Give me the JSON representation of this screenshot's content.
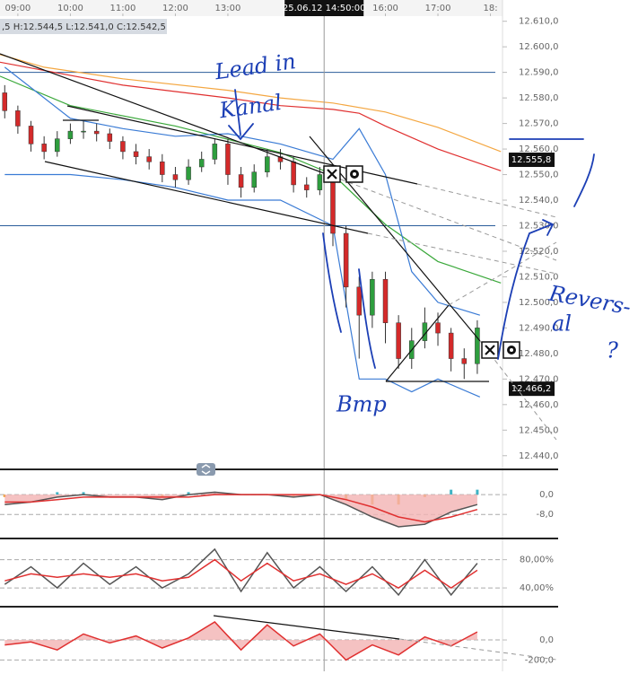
{
  "chart_data": [
    {
      "type": "candlestick",
      "info": ",5  H:12.544,5  L:12.541,0  C:12.542,5",
      "crosshair": {
        "value": 14.833,
        "label": "25.06.12 14:50:00"
      },
      "xlim": [
        8.66,
        18.23
      ],
      "xticks": [
        {
          "value": 9,
          "label": "09:00"
        },
        {
          "value": 10,
          "label": "10:00"
        },
        {
          "value": 11,
          "label": "11:00"
        },
        {
          "value": 12,
          "label": "12:00"
        },
        {
          "value": 13,
          "label": "13:00"
        },
        {
          "value": 16,
          "label": "16:00"
        },
        {
          "value": 17,
          "label": "17:00"
        },
        {
          "value": 18,
          "label": "18:"
        }
      ],
      "ylim": [
        12435,
        12612
      ],
      "yticks": [
        {
          "value": 12440,
          "label": "12.440,0"
        },
        {
          "value": 12450,
          "label": "12.450,0"
        },
        {
          "value": 12460,
          "label": "12.460,0"
        },
        {
          "value": 12470,
          "label": "12.470,0"
        },
        {
          "value": 12480,
          "label": "12.480,0"
        },
        {
          "value": 12490,
          "label": "12.490,0"
        },
        {
          "value": 12500,
          "label": "12.500,0"
        },
        {
          "value": 12510,
          "label": "12.510,0"
        },
        {
          "value": 12520,
          "label": "12.520,0"
        },
        {
          "value": 12530,
          "label": "12.530,0"
        },
        {
          "value": 12540,
          "label": "12.540,0"
        },
        {
          "value": 12550,
          "label": "12.550,0"
        },
        {
          "value": 12560,
          "label": "12.560,0"
        },
        {
          "value": 12570,
          "label": "12.570,0"
        },
        {
          "value": 12580,
          "label": "12.580,0"
        },
        {
          "value": 12590,
          "label": "12.590,0"
        },
        {
          "value": 12600,
          "label": "12.600,0"
        },
        {
          "value": 12610,
          "label": "12.610,0"
        }
      ],
      "grid": false,
      "up_color": "#2e9e3e",
      "down_color": "#d42a2a",
      "x": [
        8.75,
        9,
        9.25,
        9.5,
        9.75,
        10,
        10.25,
        10.5,
        10.75,
        11,
        11.25,
        11.5,
        11.75,
        12,
        12.25,
        12.5,
        12.75,
        13,
        13.25,
        13.5,
        13.75,
        14,
        14.25,
        14.5,
        14.75,
        15,
        15.25,
        15.5,
        15.75,
        16,
        16.25,
        16.5,
        16.75,
        17,
        17.25,
        17.5,
        17.75
      ],
      "open": [
        12582,
        12575,
        12569,
        12562,
        12559,
        12564,
        12567,
        12567,
        12566,
        12563,
        12559,
        12557,
        12555,
        12550,
        12548,
        12553,
        12556,
        12562,
        12550,
        12545,
        12551,
        12557,
        12555,
        12546,
        12544,
        12550,
        12527,
        12506,
        12495,
        12509,
        12492,
        12478,
        12485,
        12492,
        12488,
        12478,
        12476
      ],
      "high": [
        12585,
        12577,
        12571,
        12565,
        12567,
        12570,
        12571,
        12570,
        12568,
        12565,
        12562,
        12560,
        12558,
        12553,
        12556,
        12559,
        12564,
        12564,
        12553,
        12554,
        12560,
        12560,
        12557,
        12549,
        12553,
        12552,
        12530,
        12510,
        12512,
        12512,
        12495,
        12490,
        12498,
        12496,
        12490,
        12482,
        12493
      ],
      "low": [
        12572,
        12566,
        12559,
        12556,
        12557,
        12562,
        12564,
        12563,
        12560,
        12556,
        12554,
        12552,
        12547,
        12545,
        12546,
        12551,
        12554,
        12546,
        12541,
        12543,
        12549,
        12552,
        12543,
        12541,
        12542,
        12522,
        12498,
        12478,
        12490,
        12484,
        12474,
        12474,
        12482,
        12483,
        12473,
        12470,
        12472
      ],
      "close": [
        12575,
        12569,
        12562,
        12559,
        12564,
        12567,
        12567,
        12566,
        12563,
        12559,
        12557,
        12555,
        12550,
        12548,
        12553,
        12556,
        12562,
        12550,
        12545,
        12551,
        12557,
        12555,
        12546,
        12544,
        12550,
        12527,
        12506,
        12495,
        12509,
        12492,
        12478,
        12485,
        12492,
        12488,
        12478,
        12476,
        12490
      ],
      "lines": [
        {
          "color": "#f4a742",
          "x": [
            8.66,
            9.5,
            11,
            13,
            14,
            15,
            16,
            17,
            18.2
          ],
          "values": [
            12597,
            12592,
            12587.5,
            12583,
            12580,
            12578,
            12574.5,
            12568.5,
            12559
          ]
        },
        {
          "color": "#e03030",
          "x": [
            8.66,
            11,
            13,
            14,
            15,
            15.5,
            16,
            17,
            18.2
          ],
          "values": [
            12594,
            12585,
            12580,
            12577,
            12575.5,
            12574,
            12569,
            12560,
            12551.5
          ]
        },
        {
          "color": "#3aa83a",
          "x": [
            8.66,
            10,
            12,
            14,
            15,
            16,
            17,
            18.2
          ],
          "values": [
            12588.5,
            12577,
            12569,
            12558.6,
            12550,
            12530.5,
            12516,
            12507.6
          ]
        },
        {
          "color": "#3a7bd5",
          "x": [
            8.75,
            10,
            11,
            12,
            13,
            14,
            15,
            15.5,
            16,
            16.5,
            17,
            17.8
          ],
          "values": [
            12592,
            12572,
            12568,
            12565,
            12566,
            12562,
            12556,
            12568,
            12550,
            12512,
            12500,
            12495
          ]
        },
        {
          "color": "#3a7bd5",
          "x": [
            8.75,
            10,
            11,
            12,
            13,
            14,
            15,
            15.5,
            16,
            16.5,
            17,
            17.8
          ],
          "values": [
            12550,
            12550,
            12548,
            12545,
            12540,
            12540,
            12530,
            12470,
            12470,
            12465,
            12470,
            12463
          ]
        }
      ],
      "hlines": [
        12590,
        12530
      ],
      "hline_color": "#2a5c9a",
      "price_labels": [
        {
          "value": 12555.8,
          "label": "12.555,8"
        },
        {
          "value": 12466.2,
          "label": "12.466,2"
        }
      ],
      "annotations": [
        "Lead in",
        "Kanal",
        "Bmp",
        "Revers-",
        "al",
        "?"
      ],
      "annotation_color": "#1c3fb5"
    },
    {
      "type": "line",
      "xlim": [
        8.66,
        18.23
      ],
      "ylim": [
        -17,
        8.4
      ],
      "yticks": [
        {
          "value": 0,
          "label": "0,0"
        },
        {
          "value": -8,
          "label": "-8,0"
        }
      ],
      "grid": true,
      "histogram": {
        "x": [
          8.75,
          9.25,
          9.75,
          10.25,
          10.75,
          11.25,
          11.75,
          12.25,
          12.75,
          13.25,
          13.75,
          14.25,
          14.75,
          15.25,
          15.75,
          16.25,
          16.75,
          17.25,
          17.75
        ],
        "values": [
          -1,
          0,
          1,
          1,
          0,
          0,
          -1,
          1,
          1,
          0,
          0,
          -1,
          0,
          -2,
          -4,
          -4,
          -1,
          2,
          2
        ],
        "colors": [
          "#3fb3c4",
          "#f0a030"
        ]
      },
      "series": [
        {
          "color": "#555555",
          "fill": "#f3b3b3",
          "x": [
            8.75,
            9.25,
            9.75,
            10.25,
            10.75,
            11.25,
            11.75,
            12.25,
            12.75,
            13.25,
            13.75,
            14.25,
            14.75,
            15.25,
            15.75,
            16.25,
            16.75,
            17.25,
            17.75
          ],
          "values": [
            -4,
            -3,
            -1,
            0,
            -1,
            -1,
            -2,
            0,
            1,
            0,
            0,
            -1,
            0,
            -4,
            -9,
            -13,
            -12,
            -7,
            -4
          ]
        },
        {
          "color": "#e03030",
          "x": [
            8.75,
            9.25,
            9.75,
            10.25,
            10.75,
            11.25,
            11.75,
            12.25,
            12.75,
            13.25,
            13.75,
            14.25,
            14.75,
            15.25,
            15.75,
            16.25,
            16.75,
            17.25,
            17.75
          ],
          "values": [
            -3,
            -3,
            -2,
            -1,
            -1,
            -1,
            -1,
            -1,
            0,
            0,
            0,
            0,
            0,
            -2,
            -5,
            -9,
            -11,
            -9,
            -6
          ]
        }
      ]
    },
    {
      "type": "line",
      "xlim": [
        8.66,
        18.23
      ],
      "ylim": [
        21,
        105
      ],
      "yticks": [
        {
          "value": 80,
          "label": "80,00%"
        },
        {
          "value": 40,
          "label": "40,00%"
        }
      ],
      "grid": true,
      "series": [
        {
          "color": "#555555",
          "x": [
            8.75,
            9.25,
            9.75,
            10.25,
            10.75,
            11.25,
            11.75,
            12.25,
            12.75,
            13.25,
            13.75,
            14.25,
            14.75,
            15.25,
            15.75,
            16.25,
            16.75,
            17.25,
            17.75
          ],
          "values": [
            45,
            70,
            40,
            75,
            45,
            70,
            40,
            60,
            95,
            35,
            90,
            40,
            70,
            35,
            70,
            30,
            80,
            30,
            75
          ]
        },
        {
          "color": "#e03030",
          "x": [
            8.75,
            9.25,
            9.75,
            10.25,
            10.75,
            11.25,
            11.75,
            12.25,
            12.75,
            13.25,
            13.75,
            14.25,
            14.75,
            15.25,
            15.75,
            16.25,
            16.75,
            17.25,
            17.75
          ],
          "values": [
            50,
            60,
            55,
            60,
            55,
            60,
            50,
            55,
            80,
            50,
            75,
            50,
            60,
            45,
            60,
            40,
            65,
            40,
            65
          ]
        }
      ]
    },
    {
      "type": "line",
      "xlim": [
        8.66,
        18.23
      ],
      "ylim": [
        -313,
        296
      ],
      "yticks": [
        {
          "value": 0,
          "label": "0,0"
        },
        {
          "value": -200,
          "label": "-200,0"
        }
      ],
      "grid": true,
      "series": [
        {
          "color": "#e03030",
          "fill": "#f3b3b3",
          "x": [
            8.75,
            9.25,
            9.75,
            10.25,
            10.75,
            11.25,
            11.75,
            12.25,
            12.75,
            13.25,
            13.75,
            14.25,
            14.75,
            15.25,
            15.75,
            16.25,
            16.75,
            17.25,
            17.75
          ],
          "values": [
            -50,
            -20,
            -100,
            60,
            -30,
            40,
            -80,
            20,
            180,
            -100,
            150,
            -60,
            60,
            -200,
            -50,
            -150,
            30,
            -60,
            80
          ]
        }
      ]
    }
  ]
}
